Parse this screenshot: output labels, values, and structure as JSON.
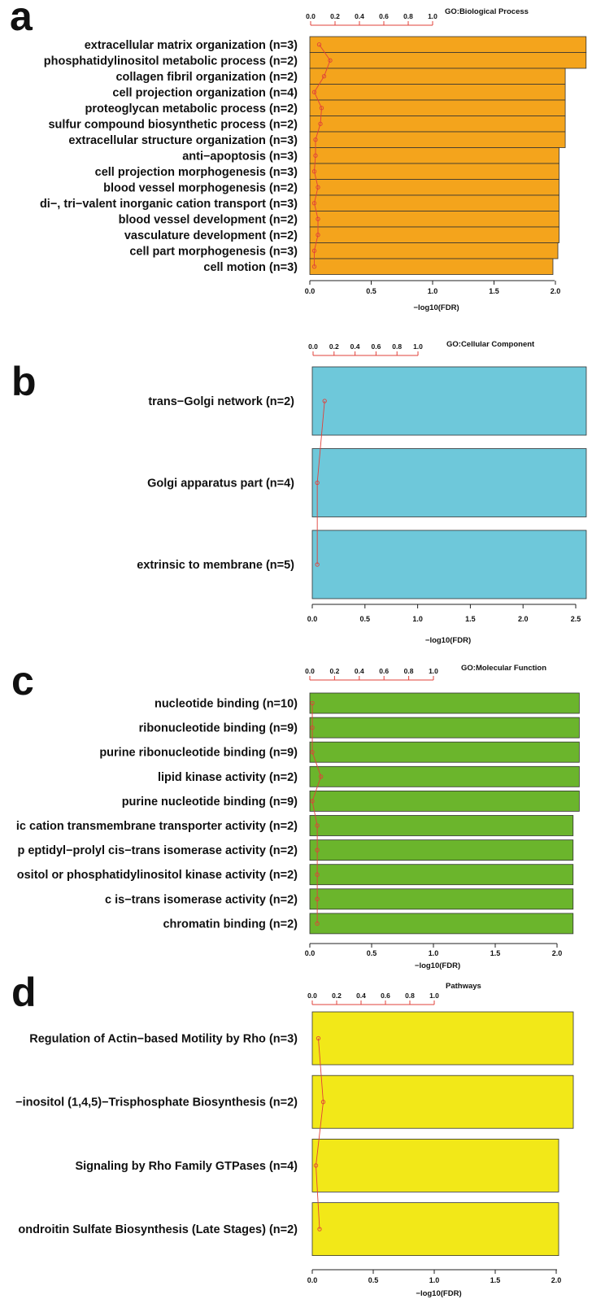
{
  "chart_data": [
    {
      "type": "bar",
      "orientation": "horizontal",
      "panel_letter": "a",
      "title": "GO:Biological Process",
      "xlabel": "−log10(FDR)",
      "bar_color": "#f4a41c",
      "x_ticks": [
        "0.0",
        "0.5",
        "1.0",
        "1.5",
        "2.0"
      ],
      "xlim": [
        0,
        2.2
      ],
      "secondary_axis": {
        "ticks": [
          "0.0",
          "0.2",
          "0.4",
          "0.6",
          "0.8",
          "1.0"
        ],
        "range": [
          0,
          1
        ],
        "color": "#e0403a"
      },
      "categories": [
        "extracellular matrix organization (n=3)",
        "phosphatidylinositol metabolic process (n=2)",
        "collagen fibril organization (n=2)",
        "cell projection organization (n=4)",
        "proteoglycan metabolic process (n=2)",
        "sulfur compound biosynthetic process (n=2)",
        "extracellular structure organization (n=3)",
        "anti−apoptosis (n=3)",
        "cell projection morphogenesis (n=3)",
        "blood vessel morphogenesis (n=2)",
        "di−, tri−valent inorganic cation transport (n=3)",
        "blood vessel development (n=2)",
        "vasculature development (n=2)",
        "cell part morphogenesis (n=3)",
        "cell motion (n=3)"
      ],
      "values": [
        2.25,
        2.25,
        2.08,
        2.08,
        2.08,
        2.08,
        2.08,
        2.03,
        2.03,
        2.03,
        2.03,
        2.03,
        2.03,
        2.02,
        1.98
      ],
      "ratio_values": [
        0.07,
        0.16,
        0.11,
        0.03,
        0.09,
        0.08,
        0.04,
        0.04,
        0.03,
        0.06,
        0.03,
        0.06,
        0.06,
        0.03,
        0.03
      ]
    },
    {
      "type": "bar",
      "orientation": "horizontal",
      "panel_letter": "b",
      "title": "GO:Cellular Component",
      "xlabel": "−log10(FDR)",
      "bar_color": "#6ec8da",
      "x_ticks": [
        "0.0",
        "0.5",
        "1.0",
        "1.5",
        "2.0",
        "2.5"
      ],
      "xlim": [
        0,
        2.5
      ],
      "secondary_axis": {
        "ticks": [
          "0.0",
          "0.2",
          "0.4",
          "0.6",
          "0.8",
          "1.0"
        ],
        "range": [
          0,
          1
        ],
        "color": "#e0403a"
      },
      "categories": [
        "trans−Golgi network (n=2)",
        "Golgi apparatus part (n=4)",
        "extrinsic to membrane (n=5)"
      ],
      "values": [
        2.6,
        2.6,
        2.6
      ],
      "ratio_values": [
        0.11,
        0.04,
        0.04
      ]
    },
    {
      "type": "bar",
      "orientation": "horizontal",
      "panel_letter": "c",
      "title": "GO:Molecular Function",
      "xlabel": "−log10(FDR)",
      "bar_color": "#6bb52c",
      "x_ticks": [
        "0.0",
        "0.5",
        "1.0",
        "1.5",
        "2.0"
      ],
      "xlim": [
        0,
        2.2
      ],
      "secondary_axis": {
        "ticks": [
          "0.0",
          "0.2",
          "0.4",
          "0.6",
          "0.8",
          "1.0"
        ],
        "range": [
          0,
          1
        ],
        "color": "#e0403a"
      },
      "categories": [
        "nucleotide binding (n=10)",
        "ribonucleotide binding (n=9)",
        "purine ribonucleotide binding (n=9)",
        "lipid kinase activity (n=2)",
        "purine nucleotide binding (n=9)",
        "ic cation transmembrane transporter activity (n=2)",
        "p  eptidyl−prolyl cis−trans isomerase activity (n=2)",
        "ositol or phosphatidylinositol kinase activity (n=2)",
        "c  is−trans isomerase activity (n=2)",
        "chromatin binding (n=2)"
      ],
      "values": [
        2.18,
        2.18,
        2.18,
        2.18,
        2.18,
        2.13,
        2.13,
        2.13,
        2.13,
        2.13
      ],
      "ratio_values": [
        0.02,
        0.02,
        0.02,
        0.09,
        0.02,
        0.06,
        0.06,
        0.06,
        0.06,
        0.06
      ]
    },
    {
      "type": "bar",
      "orientation": "horizontal",
      "panel_letter": "d",
      "title": "Pathways",
      "xlabel": "−log10(FDR)",
      "bar_color": "#f2e818",
      "x_ticks": [
        "0.0",
        "0.5",
        "1.0",
        "1.5",
        "2.0"
      ],
      "xlim": [
        0,
        2.2
      ],
      "secondary_axis": {
        "ticks": [
          "0.0",
          "0.2",
          "0.4",
          "0.6",
          "0.8",
          "1.0"
        ],
        "range": [
          0,
          1
        ],
        "color": "#e0403a"
      },
      "categories": [
        "Regulation of Actin−based Motility by Rho (n=3)",
        "−inositol (1,4,5)−Trisphosphate Biosynthesis (n=2)",
        "Signaling by Rho Family GTPases (n=4)",
        "ondroitin Sulfate Biosynthesis (Late Stages) (n=2)"
      ],
      "values": [
        2.14,
        2.14,
        2.02,
        2.02
      ],
      "ratio_values": [
        0.05,
        0.09,
        0.03,
        0.06
      ]
    }
  ]
}
